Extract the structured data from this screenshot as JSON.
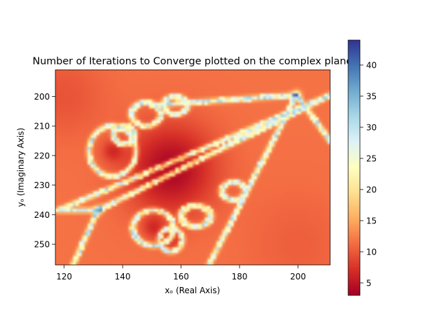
{
  "chart_data": {
    "type": "heatmap",
    "title": "Number of Iterations to Converge plotted on the complex plane",
    "xlabel": "xₒ (Real Axis)",
    "ylabel": "yₒ (Imaginary Axis)",
    "xlim": [
      117,
      211
    ],
    "ylim": [
      257,
      191
    ],
    "x_ticks": [
      120,
      140,
      160,
      180,
      200
    ],
    "y_ticks": [
      200,
      210,
      220,
      230,
      240,
      250
    ],
    "colorbar": {
      "colormap": "RdYlBu",
      "range": [
        3,
        44
      ],
      "ticks": [
        5,
        10,
        15,
        20,
        25,
        30,
        35,
        40
      ]
    },
    "features": {
      "basin_minima": [
        {
          "x": 156.5,
          "y": 224.5,
          "value": 3
        },
        {
          "x": 156.5,
          "y": 248.5,
          "value": 6
        },
        {
          "x": 150.5,
          "y": 244.5,
          "value": 7
        },
        {
          "x": 136.5,
          "y": 218.5,
          "value": 7
        }
      ],
      "high_iteration_points": [
        {
          "x": 199.5,
          "y": 199.5,
          "value": 30
        },
        {
          "x": 131.5,
          "y": 238.5,
          "value": 30
        }
      ],
      "boundary_curves": [
        {
          "from": [
            118,
            238.5
          ],
          "to": [
            211,
            199.5
          ],
          "kind": "horizontal-arms"
        },
        {
          "from": [
            199.5,
            199.5
          ],
          "to": [
            169.5,
            257
          ],
          "kind": "diagonal"
        },
        {
          "from": [
            199.5,
            199.5
          ],
          "to": [
            211,
            215
          ],
          "kind": "diagonal"
        },
        {
          "from": [
            131.5,
            238.5
          ],
          "to": [
            123,
            257
          ],
          "kind": "diagonal"
        }
      ]
    }
  }
}
